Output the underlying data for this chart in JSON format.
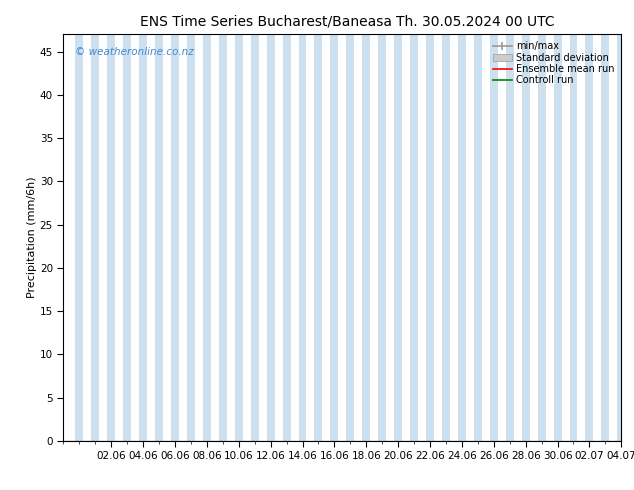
{
  "title": "ENS Time Series Bucharest/Baneasa",
  "title2": "Th. 30.05.2024 00 UTC",
  "ylabel": "Precipitation (mm/6h)",
  "ylim": [
    0,
    47
  ],
  "yticks": [
    0,
    5,
    10,
    15,
    20,
    25,
    30,
    35,
    40,
    45
  ],
  "xtick_labels": [
    "02.06",
    "04.06",
    "06.06",
    "08.06",
    "10.06",
    "12.06",
    "14.06",
    "16.06",
    "18.06",
    "20.06",
    "22.06",
    "24.06",
    "26.06",
    "28.06",
    "30.06",
    "02.07",
    "04.07"
  ],
  "watermark": "© weatheronline.co.nz",
  "watermark_color": "#4488cc",
  "background_color": "#ffffff",
  "band_color": "#cce0f0",
  "legend_minmax_color": "#999999",
  "legend_stddev_color": "#cccccc",
  "legend_mean_color": "#ff0000",
  "legend_control_color": "#008800",
  "title_fontsize": 10,
  "axis_label_fontsize": 8,
  "tick_fontsize": 7.5,
  "fig_width": 6.34,
  "fig_height": 4.9,
  "dpi": 100
}
